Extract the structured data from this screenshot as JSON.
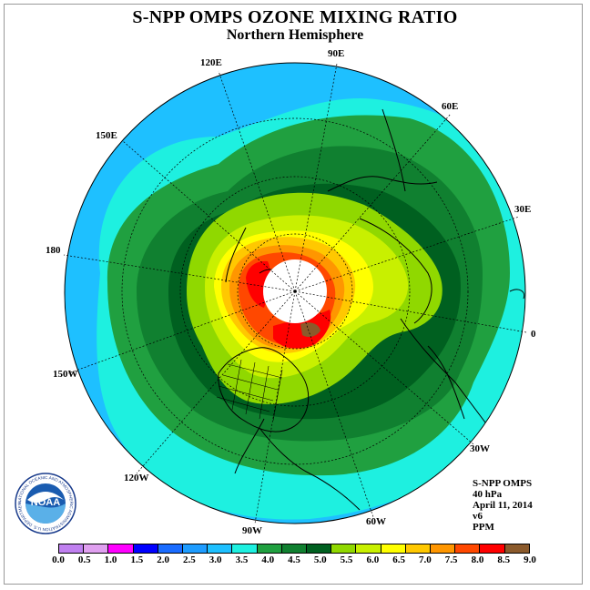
{
  "title": "S-NPP OMPS OZONE MIXING RATIO",
  "subtitle": "Northern Hemisphere",
  "longitude_labels": [
    "90E",
    "60E",
    "30E",
    "0",
    "30W",
    "60W",
    "90W",
    "120W",
    "150W",
    "180",
    "150E",
    "120E"
  ],
  "info": {
    "instrument": "S-NPP OMPS",
    "level": "40 hPa",
    "date": "April 11, 2014",
    "version": "v6",
    "units": "PPM"
  },
  "logo": {
    "name": "NOAA",
    "ring_text": "NATIONAL OCEANIC AND ATMOSPHERIC ADMINISTRATION  U.S. DEPARTMENT OF COMMERCE"
  },
  "colorbar": {
    "ticks": [
      "0.0",
      "0.5",
      "1.0",
      "1.5",
      "2.0",
      "2.5",
      "3.0",
      "3.5",
      "4.0",
      "4.5",
      "5.0",
      "5.5",
      "6.0",
      "6.5",
      "7.0",
      "7.5",
      "8.0",
      "8.5",
      "9.0"
    ],
    "colors": [
      "#c080f0",
      "#e0a0f0",
      "#ff00ff",
      "#0000ff",
      "#1a6cff",
      "#1e9cff",
      "#1ec0ff",
      "#1ef0e0",
      "#20a040",
      "#108030",
      "#006020",
      "#90d800",
      "#c8f000",
      "#ffff00",
      "#ffc800",
      "#ff9600",
      "#ff4800",
      "#ff0000",
      "#8b5a2b"
    ]
  }
}
